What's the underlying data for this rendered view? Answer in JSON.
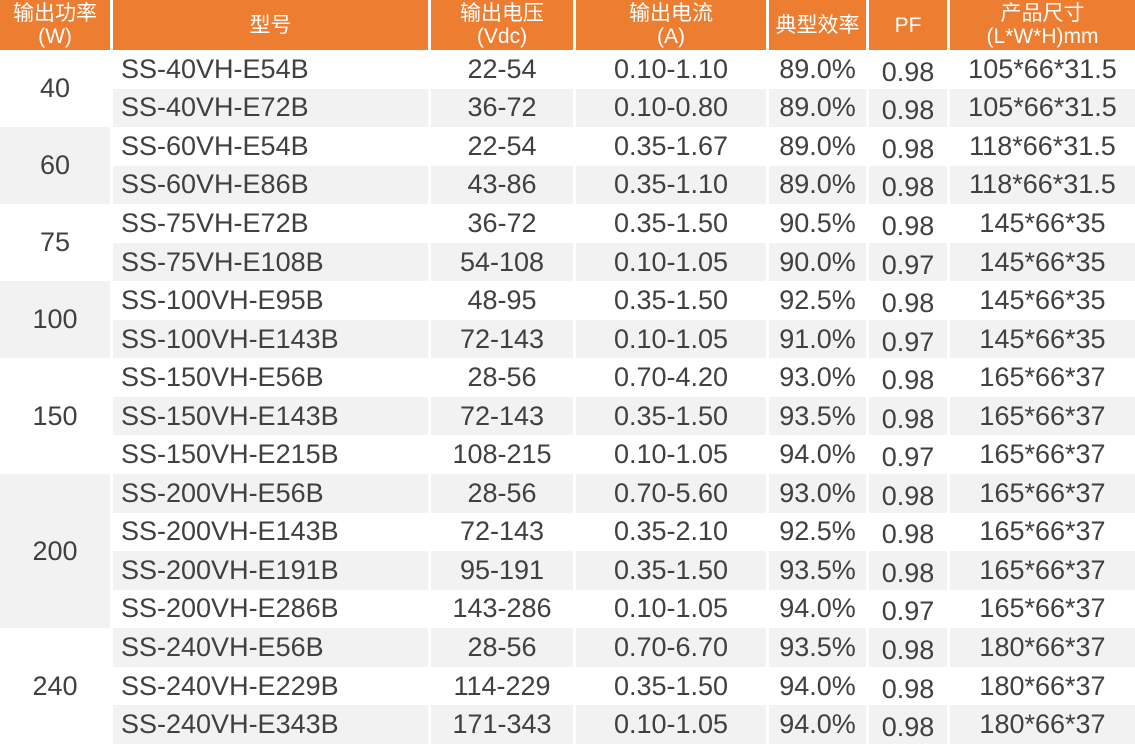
{
  "header": {
    "columns": [
      {
        "line1": "输出功率",
        "line2": "(W)"
      },
      {
        "line1": "型号",
        "line2": ""
      },
      {
        "line1": "输出电压",
        "line2": "(Vdc)"
      },
      {
        "line1": "输出电流",
        "line2": "(A)"
      },
      {
        "line1": "典型效率",
        "line2": ""
      },
      {
        "line1": "PF",
        "line2": ""
      },
      {
        "line1": "产品尺寸",
        "line2": "(L*W*H)mm"
      }
    ]
  },
  "groups": [
    {
      "power": "40",
      "rows": [
        {
          "model": "SS-40VH-E54B",
          "voltage": "22-54",
          "current": "0.10-1.10",
          "efficiency": "89.0%",
          "pf": "0.98",
          "size": "105*66*31.5"
        },
        {
          "model": "SS-40VH-E72B",
          "voltage": "36-72",
          "current": "0.10-0.80",
          "efficiency": "89.0%",
          "pf": "0.98",
          "size": "105*66*31.5"
        }
      ]
    },
    {
      "power": "60",
      "rows": [
        {
          "model": "SS-60VH-E54B",
          "voltage": "22-54",
          "current": "0.35-1.67",
          "efficiency": "89.0%",
          "pf": "0.98",
          "size": "118*66*31.5"
        },
        {
          "model": "SS-60VH-E86B",
          "voltage": "43-86",
          "current": "0.35-1.10",
          "efficiency": "89.0%",
          "pf": "0.98",
          "size": "118*66*31.5"
        }
      ]
    },
    {
      "power": "75",
      "rows": [
        {
          "model": "SS-75VH-E72B",
          "voltage": "36-72",
          "current": "0.35-1.50",
          "efficiency": "90.5%",
          "pf": "0.98",
          "size": "145*66*35"
        },
        {
          "model": "SS-75VH-E108B",
          "voltage": "54-108",
          "current": "0.10-1.05",
          "efficiency": "90.0%",
          "pf": "0.97",
          "size": "145*66*35"
        }
      ]
    },
    {
      "power": "100",
      "rows": [
        {
          "model": "SS-100VH-E95B",
          "voltage": "48-95",
          "current": "0.35-1.50",
          "efficiency": "92.5%",
          "pf": "0.98",
          "size": "145*66*35"
        },
        {
          "model": "SS-100VH-E143B",
          "voltage": "72-143",
          "current": "0.10-1.05",
          "efficiency": "91.0%",
          "pf": "0.97",
          "size": "145*66*35"
        }
      ]
    },
    {
      "power": "150",
      "rows": [
        {
          "model": "SS-150VH-E56B",
          "voltage": "28-56",
          "current": "0.70-4.20",
          "efficiency": "93.0%",
          "pf": "0.98",
          "size": "165*66*37"
        },
        {
          "model": "SS-150VH-E143B",
          "voltage": "72-143",
          "current": "0.35-1.50",
          "efficiency": "93.5%",
          "pf": "0.98",
          "size": "165*66*37"
        },
        {
          "model": "SS-150VH-E215B",
          "voltage": "108-215",
          "current": "0.10-1.05",
          "efficiency": "94.0%",
          "pf": "0.97",
          "size": "165*66*37"
        }
      ]
    },
    {
      "power": "200",
      "rows": [
        {
          "model": "SS-200VH-E56B",
          "voltage": "28-56",
          "current": "0.70-5.60",
          "efficiency": "93.0%",
          "pf": "0.98",
          "size": "165*66*37"
        },
        {
          "model": "SS-200VH-E143B",
          "voltage": "72-143",
          "current": "0.35-2.10",
          "efficiency": "92.5%",
          "pf": "0.98",
          "size": "165*66*37"
        },
        {
          "model": "SS-200VH-E191B",
          "voltage": "95-191",
          "current": "0.35-1.50",
          "efficiency": "93.5%",
          "pf": "0.98",
          "size": "165*66*37"
        },
        {
          "model": "SS-200VH-E286B",
          "voltage": "143-286",
          "current": "0.10-1.05",
          "efficiency": "94.0%",
          "pf": "0.97",
          "size": "165*66*37"
        }
      ]
    },
    {
      "power": "240",
      "rows": [
        {
          "model": "SS-240VH-E56B",
          "voltage": "28-56",
          "current": "0.70-6.70",
          "efficiency": "93.5%",
          "pf": "0.98",
          "size": "180*66*37"
        },
        {
          "model": "SS-240VH-E229B",
          "voltage": "114-229",
          "current": "0.35-1.50",
          "efficiency": "94.0%",
          "pf": "0.98",
          "size": "180*66*37"
        },
        {
          "model": "SS-240VH-E343B",
          "voltage": "171-343",
          "current": "0.10-1.05",
          "efficiency": "94.0%",
          "pf": "0.98",
          "size": "180*66*37"
        }
      ]
    }
  ],
  "colors": {
    "header_bg": "#ED7D31",
    "header_text": "#FFFFFF",
    "row_bg": "#FFFFFF",
    "row_alt_bg": "#F2F2F2",
    "text": "#404040"
  }
}
